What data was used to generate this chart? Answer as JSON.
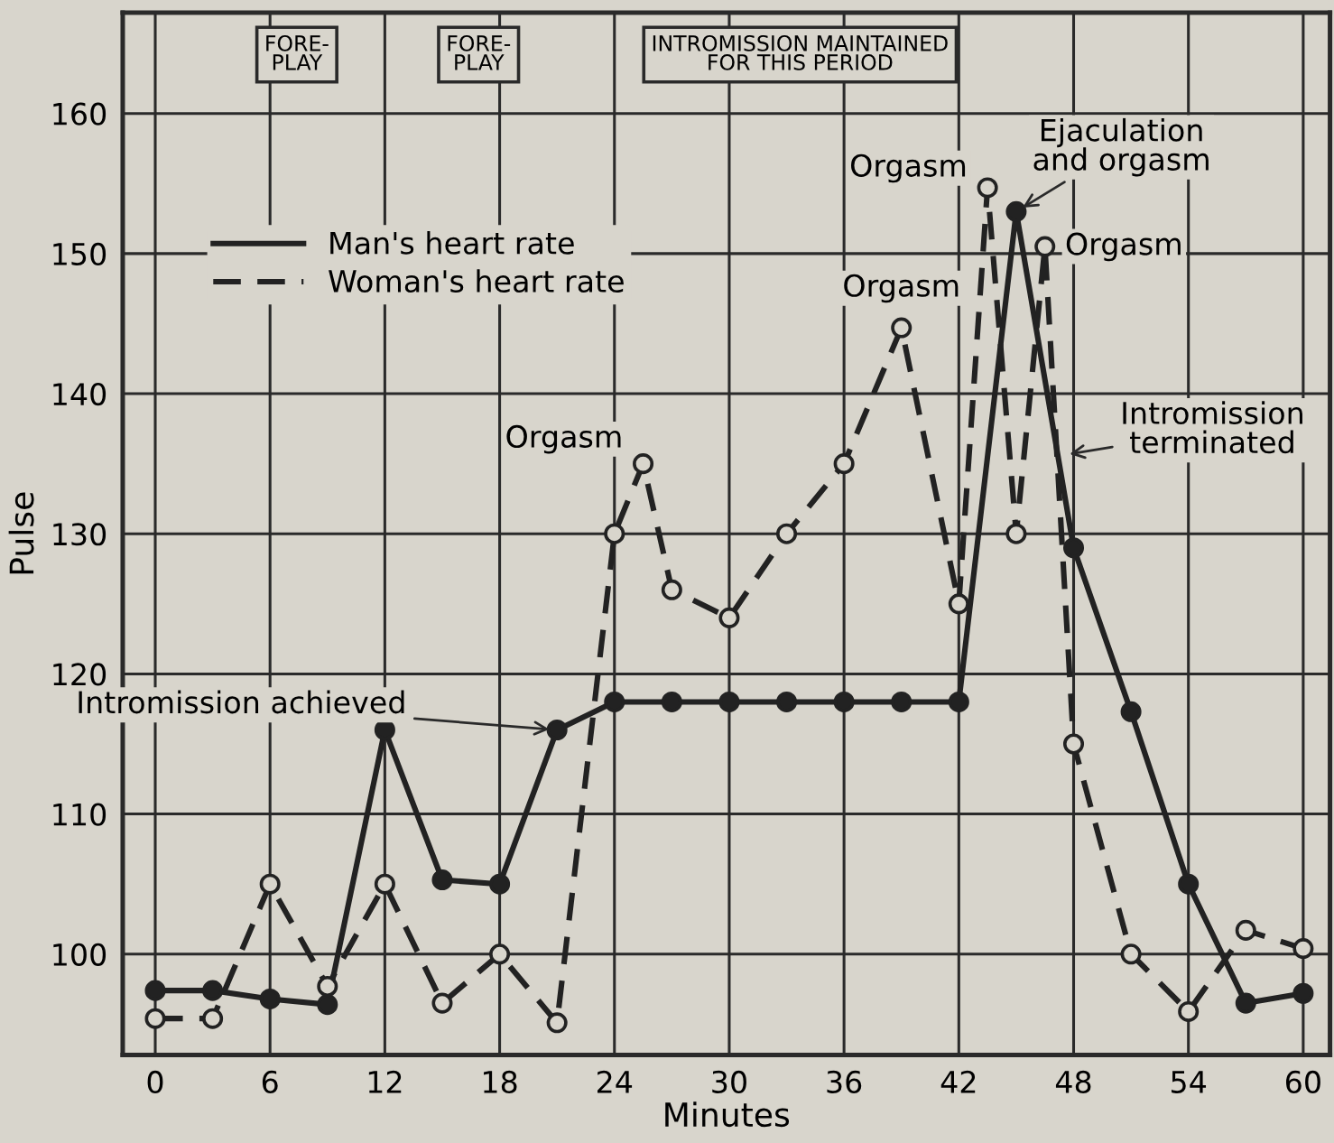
{
  "chart_data": {
    "type": "line",
    "xlabel": "Minutes",
    "ylabel": "Pulse",
    "xlim": [
      -1.7,
      61.4
    ],
    "ylim": [
      92.8,
      167.2
    ],
    "xticks": [
      0,
      6,
      12,
      18,
      24,
      30,
      36,
      42,
      48,
      54,
      60
    ],
    "yticks": [
      100,
      110,
      120,
      130,
      140,
      150,
      160
    ],
    "grid": true,
    "legend": "top left",
    "series": [
      {
        "name": "Man's heart rate",
        "color": "#222222",
        "marker": "circle",
        "line_style": "solid",
        "x": [
          0,
          3,
          6,
          9,
          12,
          15,
          18,
          21,
          24,
          27,
          30,
          33,
          36,
          39,
          42,
          45,
          48,
          51,
          54,
          57,
          60
        ],
        "values": [
          97.4,
          97.4,
          96.8,
          96.4,
          116,
          105.3,
          105,
          116,
          118,
          118,
          118,
          118,
          118,
          118,
          118,
          153,
          129,
          117.3,
          105,
          96.5,
          97.2
        ]
      },
      {
        "name": "Woman's heart rate",
        "color": "#222222",
        "marker": "circle",
        "line_style": "dashed",
        "x": [
          0,
          3,
          6,
          9,
          12,
          15,
          18,
          21,
          24,
          25.5,
          27,
          30,
          33,
          36,
          39,
          42,
          43.5,
          45,
          46.5,
          48,
          51,
          54,
          57,
          60
        ],
        "values": [
          95.4,
          95.4,
          105,
          97.7,
          105,
          96.5,
          100,
          95.1,
          130,
          135,
          126,
          124,
          130,
          135,
          144.7,
          125,
          154.7,
          130,
          150.5,
          115,
          100,
          95.9,
          101.7,
          100.4
        ]
      }
    ],
    "annotations": [
      "FORE-\nPLAY",
      "FORE-\nPLAY",
      "INTROMISSION MAINTAINED\nFOR THIS PERIOD",
      {
        "text": "Orgasm",
        "x": 25.5,
        "y": 135
      },
      {
        "text": "Orgasm",
        "x": 39,
        "y": 144.7
      },
      {
        "text": "Orgasm",
        "x": 43.5,
        "y": 154.7
      },
      {
        "text": "Orgasm",
        "x": 46.5,
        "y": 150.5
      },
      {
        "text": "Ejaculation\nand orgasm",
        "x": 45,
        "y": 153
      },
      {
        "text": "Intromission\nterminated",
        "x": 47.4,
        "y": 135.6
      },
      {
        "text": "Intromission achieved",
        "x": 21,
        "y": 116
      }
    ]
  }
}
